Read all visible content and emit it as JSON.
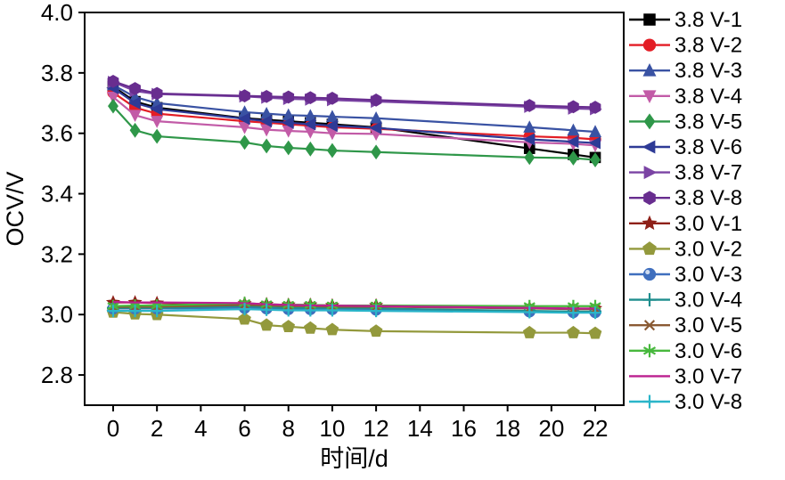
{
  "chart_data": {
    "type": "line",
    "title": "",
    "xlabel": "时间/d",
    "ylabel": "OCV/V",
    "xlim": [
      -1.3,
      23.3
    ],
    "ylim": [
      2.7,
      4.0
    ],
    "xticks": [
      0,
      2,
      4,
      6,
      8,
      10,
      12,
      14,
      16,
      18,
      20,
      22
    ],
    "yticks": [
      2.8,
      3.0,
      3.2,
      3.4,
      3.6,
      3.8,
      4.0
    ],
    "grid": false,
    "legend_position": "right",
    "x": [
      0,
      1,
      2,
      6,
      7,
      8,
      9,
      10,
      12,
      19,
      21,
      22
    ],
    "series": [
      {
        "name": "3.8 V-1",
        "color": "#000000",
        "marker": "square",
        "values": [
          3.755,
          3.705,
          3.685,
          3.65,
          3.645,
          3.64,
          3.635,
          3.63,
          3.62,
          3.55,
          3.53,
          3.52
        ]
      },
      {
        "name": "3.8 V-2",
        "color": "#e31d25",
        "marker": "circle",
        "values": [
          3.735,
          3.685,
          3.665,
          3.64,
          3.635,
          3.63,
          3.625,
          3.62,
          3.615,
          3.59,
          3.585,
          3.58
        ]
      },
      {
        "name": "3.8 V-3",
        "color": "#3952a3",
        "marker": "triangle-up",
        "values": [
          3.76,
          3.72,
          3.7,
          3.67,
          3.665,
          3.66,
          3.658,
          3.655,
          3.65,
          3.62,
          3.61,
          3.605
        ]
      },
      {
        "name": "3.8 V-4",
        "color": "#c25ba7",
        "marker": "triangle-down",
        "values": [
          3.72,
          3.66,
          3.64,
          3.62,
          3.612,
          3.608,
          3.605,
          3.6,
          3.598,
          3.57,
          3.565,
          3.56
        ]
      },
      {
        "name": "3.8 V-5",
        "color": "#2f9749",
        "marker": "diamond",
        "values": [
          3.69,
          3.61,
          3.59,
          3.57,
          3.558,
          3.552,
          3.548,
          3.543,
          3.538,
          3.52,
          3.518,
          3.512
        ]
      },
      {
        "name": "3.8 V-6",
        "color": "#2e3a96",
        "marker": "triangle-left",
        "values": [
          3.75,
          3.7,
          3.68,
          3.648,
          3.64,
          3.635,
          3.63,
          3.625,
          3.618,
          3.58,
          3.572,
          3.568
        ]
      },
      {
        "name": "3.8 V-7",
        "color": "#7b44a4",
        "marker": "triangle-right",
        "values": [
          3.77,
          3.74,
          3.73,
          3.722,
          3.718,
          3.714,
          3.712,
          3.71,
          3.705,
          3.688,
          3.682,
          3.68
        ]
      },
      {
        "name": "3.8 V-8",
        "color": "#682d8f",
        "marker": "hexagon",
        "values": [
          3.772,
          3.748,
          3.732,
          3.724,
          3.722,
          3.72,
          3.718,
          3.716,
          3.71,
          3.692,
          3.688,
          3.686
        ]
      },
      {
        "name": "3.0 V-1",
        "color": "#8e2018",
        "marker": "star",
        "values": [
          3.04,
          3.04,
          3.038,
          3.036,
          3.034,
          3.032,
          3.032,
          3.03,
          3.03,
          3.022,
          3.02,
          3.02
        ]
      },
      {
        "name": "3.0 V-2",
        "color": "#93993c",
        "marker": "pentagon",
        "values": [
          3.008,
          3.002,
          3.0,
          2.985,
          2.965,
          2.96,
          2.955,
          2.95,
          2.945,
          2.94,
          2.94,
          2.938
        ]
      },
      {
        "name": "3.0 V-3",
        "color": "#3f6fbe",
        "marker": "sphere",
        "values": [
          3.02,
          3.02,
          3.02,
          3.022,
          3.02,
          3.018,
          3.018,
          3.018,
          3.016,
          3.01,
          3.008,
          3.008
        ]
      },
      {
        "name": "3.0 V-4",
        "color": "#1f8e8e",
        "marker": "plus",
        "values": [
          3.022,
          3.022,
          3.022,
          3.028,
          3.024,
          3.022,
          3.022,
          3.022,
          3.02,
          3.012,
          3.01,
          3.01
        ]
      },
      {
        "name": "3.0 V-5",
        "color": "#8a5a33",
        "marker": "x",
        "values": [
          3.025,
          3.026,
          3.026,
          3.032,
          3.03,
          3.028,
          3.028,
          3.026,
          3.026,
          3.02,
          3.018,
          3.018
        ]
      },
      {
        "name": "3.0 V-6",
        "color": "#47b83d",
        "marker": "asterisk",
        "values": [
          3.028,
          3.03,
          3.03,
          3.038,
          3.034,
          3.032,
          3.032,
          3.03,
          3.03,
          3.028,
          3.028,
          3.028
        ]
      },
      {
        "name": "3.0 V-7",
        "color": "#bb1f8f",
        "marker": "none",
        "values": [
          3.042,
          3.04,
          3.04,
          3.038,
          3.034,
          3.032,
          3.03,
          3.03,
          3.028,
          3.022,
          3.02,
          3.02
        ]
      },
      {
        "name": "3.0 V-8",
        "color": "#2ab5c9",
        "marker": "plus",
        "values": [
          3.012,
          3.012,
          3.012,
          3.018,
          3.016,
          3.014,
          3.014,
          3.014,
          3.012,
          3.008,
          3.006,
          3.006
        ]
      }
    ]
  }
}
